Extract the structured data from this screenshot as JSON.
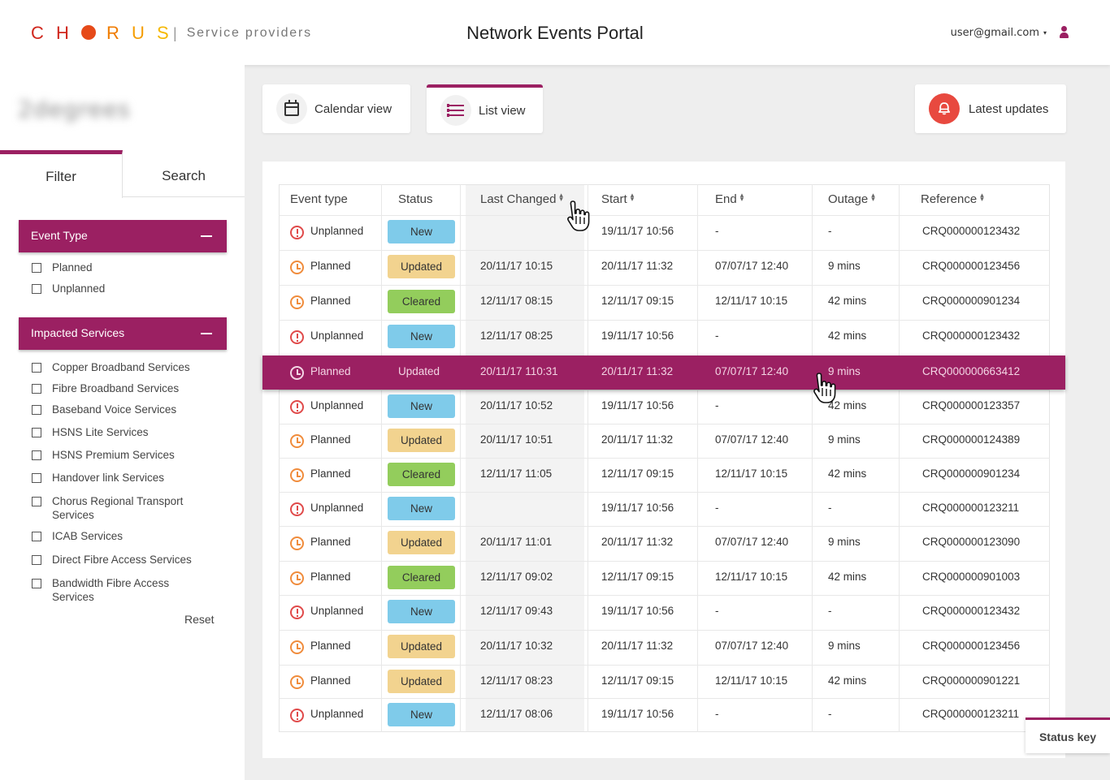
{
  "header": {
    "logo_letters": [
      "C",
      "H",
      "",
      "R",
      "U",
      "S"
    ],
    "logo_sep": "|",
    "logo_sub": "Service providers",
    "portal_title": "Network Events Portal",
    "user_email": "user@gmail.com",
    "user_caret": "▾"
  },
  "sidebar": {
    "blurred_name": "2degrees",
    "tabs": [
      "Filter",
      "Search"
    ],
    "event_type": {
      "heading": "Event Type",
      "options": [
        "Planned",
        "Unplanned"
      ]
    },
    "impacted_services": {
      "heading": "Impacted Services",
      "options": [
        "Copper Broadband Services",
        "Fibre Broadband Services",
        "Baseband Voice Services",
        "HSNS Lite Services",
        "HSNS Premium Services",
        "Handover link Services",
        "Chorus Regional Transport Services",
        "ICAB Services",
        "Direct Fibre Access Services",
        "Bandwidth Fibre Access Services"
      ]
    },
    "reset_label": "Reset"
  },
  "views": {
    "calendar_label": "Calendar view",
    "list_label": "List view",
    "latest_label": "Latest updates"
  },
  "table": {
    "columns": [
      "Event type",
      "Status",
      "Last Changed",
      "Start",
      "End",
      "Outage",
      "Reference"
    ],
    "sort_glyph": "⌃⌄",
    "rows": [
      {
        "type": "Unplanned",
        "status": "New",
        "last_changed": "",
        "start": "19/11/17  10:56",
        "end": "-",
        "outage": "-",
        "reference": "CRQ000000123432"
      },
      {
        "type": "Planned",
        "status": "Updated",
        "last_changed": "20/11/17  10:15",
        "start": "20/11/17  11:32",
        "end": "07/07/17  12:40",
        "outage": "9 mins",
        "reference": "CRQ000000123456"
      },
      {
        "type": "Planned",
        "status": "Cleared",
        "last_changed": "12/11/17  08:15",
        "start": "12/11/17  09:15",
        "end": "12/11/17  10:15",
        "outage": "42 mins",
        "reference": "CRQ000000901234"
      },
      {
        "type": "Unplanned",
        "status": "New",
        "last_changed": "12/11/17  08:25",
        "start": "19/11/17  10:56",
        "end": "-",
        "outage": "42 mins",
        "reference": "CRQ000000123432"
      },
      {
        "type": "Planned",
        "status": "Updated",
        "last_changed": "20/11/17 110:31",
        "start": "20/11/17  11:32",
        "end": "07/07/17  12:40",
        "outage": "9 mins",
        "reference": "CRQ000000663412",
        "selected": true
      },
      {
        "type": "Unplanned",
        "status": "New",
        "last_changed": "20/11/17  10:52",
        "start": "19/11/17  10:56",
        "end": "-",
        "outage": "42 mins",
        "reference": "CRQ000000123357"
      },
      {
        "type": "Planned",
        "status": "Updated",
        "last_changed": "20/11/17  10:51",
        "start": "20/11/17  11:32",
        "end": "07/07/17  12:40",
        "outage": "9 mins",
        "reference": "CRQ000000124389"
      },
      {
        "type": "Planned",
        "status": "Cleared",
        "last_changed": "12/11/17  11:05",
        "start": "12/11/17  09:15",
        "end": "12/11/17  10:15",
        "outage": "42 mins",
        "reference": "CRQ000000901234"
      },
      {
        "type": "Unplanned",
        "status": "New",
        "last_changed": "",
        "start": "19/11/17  10:56",
        "end": "-",
        "outage": "-",
        "reference": "CRQ000000123211"
      },
      {
        "type": "Planned",
        "status": "Updated",
        "last_changed": "20/11/17  11:01",
        "start": "20/11/17  11:32",
        "end": "07/07/17  12:40",
        "outage": "9 mins",
        "reference": "CRQ000000123090"
      },
      {
        "type": "Planned",
        "status": "Cleared",
        "last_changed": "12/11/17  09:02",
        "start": "12/11/17  09:15",
        "end": "12/11/17  10:15",
        "outage": "42 mins",
        "reference": "CRQ000000901003"
      },
      {
        "type": "Unplanned",
        "status": "New",
        "last_changed": "12/11/17  09:43",
        "start": "19/11/17  10:56",
        "end": "-",
        "outage": "-",
        "reference": "CRQ000000123432"
      },
      {
        "type": "Planned",
        "status": "Updated",
        "last_changed": "20/11/17  10:32",
        "start": "20/11/17  11:32",
        "end": "07/07/17  12:40",
        "outage": "9 mins",
        "reference": "CRQ000000123456"
      },
      {
        "type": "Planned",
        "status": "Updated",
        "last_changed": "12/11/17  08:23",
        "start": "12/11/17  09:15",
        "end": "12/11/17  10:15",
        "outage": "42 mins",
        "reference": "CRQ000000901221"
      },
      {
        "type": "Unplanned",
        "status": "New",
        "last_changed": "12/11/17  08:06",
        "start": "19/11/17  10:56",
        "end": "-",
        "outage": "-",
        "reference": "CRQ000000123211"
      }
    ]
  },
  "status_key_label": "Status key",
  "colors": {
    "brand": "#9b2062",
    "new": "#7fcbea",
    "updated": "#f2d38f",
    "cleared": "#93cd5c",
    "unplanned_icon": "#e04a4a",
    "planned_icon": "#f08c3c",
    "bell": "#e8493f"
  },
  "icons": {
    "calendar": "calendar-icon",
    "list": "list-icon",
    "bell": "bell-icon",
    "user": "user-icon",
    "planned": "clock-icon",
    "unplanned": "alert-icon",
    "cursor": "hand-pointer-icon"
  }
}
